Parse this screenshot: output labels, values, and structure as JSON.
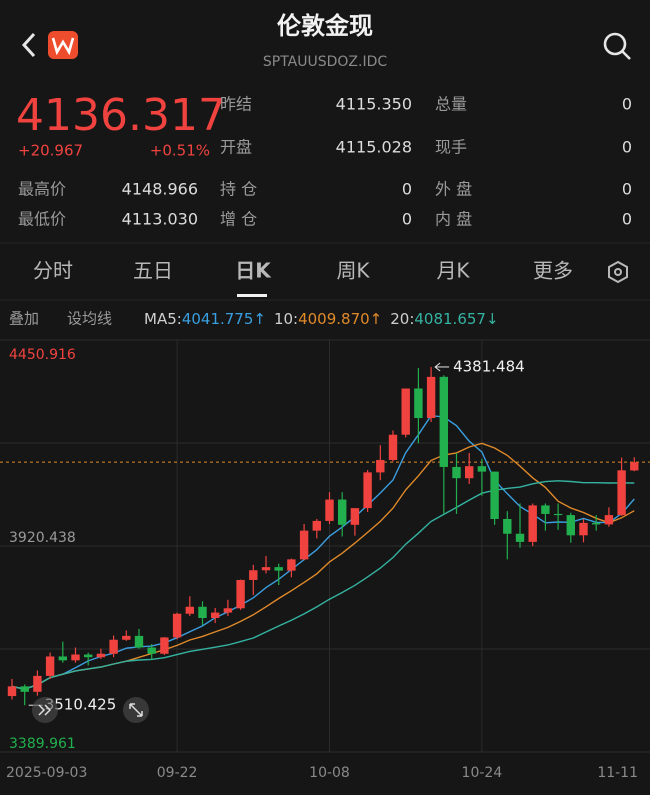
{
  "header": {
    "title": "伦敦金现",
    "subtitle": "SPTAUUSDOZ.IDC"
  },
  "quote": {
    "price": "4136.317",
    "change": "+20.967",
    "change_pct": "+0.51%",
    "fields": [
      [
        "昨结",
        "4115.350",
        "总量",
        "0"
      ],
      [
        "开盘",
        "4115.028",
        "现手",
        "0"
      ]
    ],
    "stats": [
      [
        "最高价",
        "4148.966",
        "持 仓",
        "0",
        "外 盘",
        "0"
      ],
      [
        "最低价",
        "4113.030",
        "增 仓",
        "0",
        "内 盘",
        "0"
      ]
    ]
  },
  "tabs": [
    "分时",
    "五日",
    "日K",
    "周K",
    "月K",
    "更多"
  ],
  "indicators": {
    "overlay": "叠加",
    "set_ma": "设均线",
    "ma5_label": "MA5:",
    "ma5": "4041.775↑",
    "ma10_label": "10:",
    "ma10": "4009.870↑",
    "ma20_label": "20:",
    "ma20": "4081.657↓"
  },
  "chart": {
    "type": "candlestick",
    "categories": [
      "2025-09-03",
      null,
      null,
      null,
      null,
      null,
      null,
      null,
      null,
      null,
      null,
      null,
      null,
      "09-22",
      null,
      null,
      null,
      null,
      null,
      null,
      null,
      null,
      null,
      null,
      null,
      "10-08",
      null,
      null,
      null,
      null,
      null,
      null,
      null,
      null,
      null,
      null,
      null,
      "10-24",
      null,
      null,
      null,
      null,
      null,
      null,
      null,
      null,
      null,
      null,
      null,
      "11-11"
    ],
    "open": [
      3534,
      3559,
      3545,
      3586,
      3636,
      3626,
      3641,
      3634,
      3643,
      3679,
      3689,
      3659,
      3643,
      3685,
      3746,
      3764,
      3735,
      3749,
      3760,
      3833,
      3858,
      3866,
      3857,
      3886,
      3960,
      3985,
      4040,
      3975,
      4018,
      4110,
      4142,
      4207,
      4326,
      4250,
      4356,
      4124,
      4095,
      4126,
      4112,
      3990,
      3952,
      3931,
      4025,
      4003,
      4000,
      3948,
      3980,
      3976,
      4000,
      4115.028
    ],
    "high": [
      3578,
      3564,
      3600,
      3646,
      3674,
      3659,
      3646,
      3656,
      3690,
      3703,
      3707,
      3668,
      3686,
      3749,
      3791,
      3778,
      3761,
      3782,
      3834,
      3872,
      3895,
      3875,
      3888,
      3977,
      3990,
      4059,
      4059,
      4018,
      4116,
      4180,
      4218,
      4326,
      4379,
      4381.484,
      4360,
      4160,
      4160,
      4145,
      4112,
      4010,
      4030,
      4030,
      4030,
      4030,
      4006,
      3990,
      4000,
      4020,
      4148,
      4148.966
    ],
    "low": [
      3525,
      3510.425,
      3535,
      3578,
      3620,
      3620,
      3613,
      3630,
      3634,
      3676,
      3656,
      3628,
      3640,
      3680,
      3740,
      3717,
      3722,
      3740,
      3756,
      3794,
      3850,
      3820,
      3840,
      3884,
      3940,
      3977,
      3945,
      3947,
      4008,
      4090,
      4138,
      4200,
      4185,
      4240,
      4004,
      4003,
      4080,
      4050,
      3975,
      3886,
      3916,
      3920,
      3960,
      3962,
      3929,
      3930,
      3960,
      3970,
      3998,
      4113.03
    ],
    "close": [
      3559,
      3545,
      3586,
      3636,
      3626,
      3641,
      3634,
      3643,
      3679,
      3689,
      3659,
      3643,
      3685,
      3746,
      3764,
      3735,
      3749,
      3760,
      3833,
      3858,
      3866,
      3857,
      3886,
      3960,
      3985,
      4040,
      3975,
      4018,
      4110,
      4142,
      4207,
      4326,
      4250,
      4356,
      4124,
      4095,
      4126,
      4112,
      3990,
      3952,
      3931,
      4025,
      4003,
      4000,
      3948,
      3980,
      3976,
      4000,
      4115.35,
      4136.317
    ],
    "ylim": [
      3389.961,
      4450.916
    ],
    "yticks": [
      4450.916,
      3920.438,
      3389.961
    ],
    "max_label": "4381.484",
    "min_label": "3510.425",
    "max_value": 4381.484,
    "min_value": 3510.425,
    "max_index": 33,
    "min_index": 1,
    "last_price": 4136.317,
    "up_color": "#f0433f",
    "down_color": "#22b04e",
    "ma_colors": [
      "#3a9fe0",
      "#e08a2a",
      "#35b3a2"
    ],
    "ma_periods": [
      5,
      10,
      20
    ]
  }
}
